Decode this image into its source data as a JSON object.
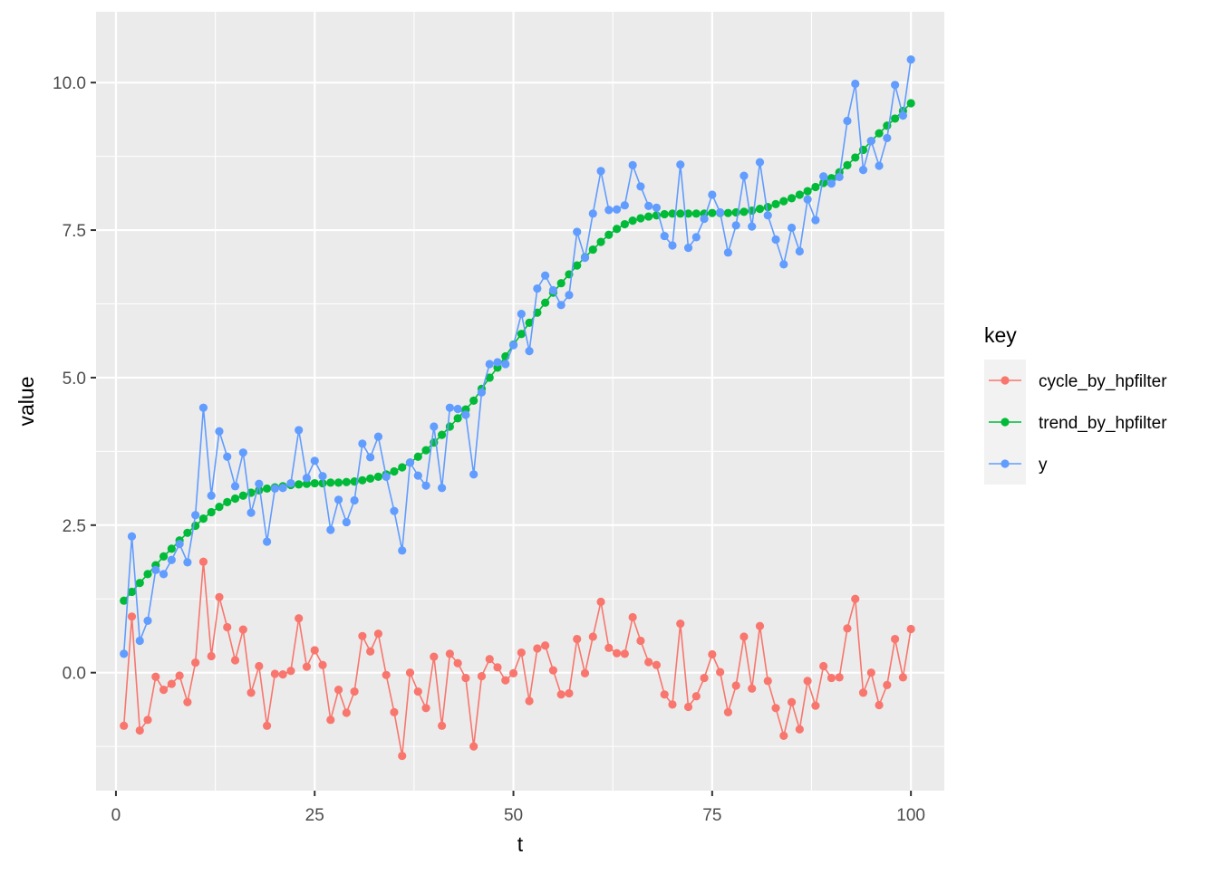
{
  "chart_data": {
    "type": "line",
    "xlabel": "t",
    "ylabel": "value",
    "xlim": [
      -2.5,
      104.2
    ],
    "ylim": [
      -2.0,
      11.2
    ],
    "x_ticks": [
      0,
      25,
      50,
      75,
      100
    ],
    "x_tick_labels": [
      "0",
      "25",
      "50",
      "75",
      "100"
    ],
    "y_ticks": [
      0.0,
      2.5,
      5.0,
      7.5,
      10.0
    ],
    "y_tick_labels": [
      "0.0",
      "2.5",
      "5.0",
      "7.5",
      "10.0"
    ],
    "grid": true,
    "legend": {
      "title": "key",
      "position": "right"
    },
    "x": [
      1,
      2,
      3,
      4,
      5,
      6,
      7,
      8,
      9,
      10,
      11,
      12,
      13,
      14,
      15,
      16,
      17,
      18,
      19,
      20,
      21,
      22,
      23,
      24,
      25,
      26,
      27,
      28,
      29,
      30,
      31,
      32,
      33,
      34,
      35,
      36,
      37,
      38,
      39,
      40,
      41,
      42,
      43,
      44,
      45,
      46,
      47,
      48,
      49,
      50,
      51,
      52,
      53,
      54,
      55,
      56,
      57,
      58,
      59,
      60,
      61,
      62,
      63,
      64,
      65,
      66,
      67,
      68,
      69,
      70,
      71,
      72,
      73,
      74,
      75,
      76,
      77,
      78,
      79,
      80,
      81,
      82,
      83,
      84,
      85,
      86,
      87,
      88,
      89,
      90,
      91,
      92,
      93,
      94,
      95,
      96,
      97,
      98,
      99,
      100
    ],
    "series": [
      {
        "name": "cycle_by_hpfilter",
        "color": "#F8766D",
        "values": [
          -0.9,
          0.95,
          -0.98,
          -0.8,
          -0.07,
          -0.29,
          -0.19,
          -0.05,
          -0.5,
          0.17,
          1.88,
          0.28,
          1.28,
          0.77,
          0.21,
          0.73,
          -0.34,
          0.11,
          -0.9,
          -0.02,
          -0.03,
          0.03,
          0.92,
          0.1,
          0.38,
          0.13,
          -0.8,
          -0.29,
          -0.68,
          -0.32,
          0.62,
          0.36,
          0.66,
          -0.04,
          -0.67,
          -1.41,
          0.0,
          -0.32,
          -0.6,
          0.27,
          -0.9,
          0.32,
          0.16,
          -0.09,
          -1.25,
          -0.06,
          0.23,
          0.09,
          -0.13,
          -0.01,
          0.34,
          -0.48,
          0.41,
          0.46,
          0.04,
          -0.37,
          -0.35,
          0.57,
          -0.01,
          0.61,
          1.2,
          0.42,
          0.33,
          0.32,
          0.94,
          0.54,
          0.18,
          0.13,
          -0.37,
          -0.54,
          0.83,
          -0.58,
          -0.4,
          -0.09,
          0.31,
          0.01,
          -0.67,
          -0.22,
          0.61,
          -0.27,
          0.79,
          -0.14,
          -0.6,
          -1.07,
          -0.5,
          -0.96,
          -0.14,
          -0.56,
          0.11,
          -0.09,
          -0.08,
          0.75,
          1.25,
          -0.34,
          0.0,
          -0.55,
          -0.21,
          0.57,
          -0.08,
          0.74
        ]
      },
      {
        "name": "trend_by_hpfilter",
        "color": "#00BA38",
        "values": [
          1.22,
          1.37,
          1.52,
          1.67,
          1.82,
          1.97,
          2.1,
          2.24,
          2.37,
          2.49,
          2.61,
          2.72,
          2.81,
          2.89,
          2.95,
          3.0,
          3.05,
          3.09,
          3.12,
          3.14,
          3.16,
          3.18,
          3.19,
          3.2,
          3.21,
          3.21,
          3.22,
          3.22,
          3.23,
          3.24,
          3.26,
          3.29,
          3.32,
          3.36,
          3.41,
          3.48,
          3.56,
          3.66,
          3.77,
          3.9,
          4.03,
          4.17,
          4.31,
          4.46,
          4.61,
          4.81,
          5.0,
          5.17,
          5.36,
          5.56,
          5.74,
          5.93,
          6.1,
          6.27,
          6.44,
          6.6,
          6.75,
          6.9,
          7.04,
          7.17,
          7.3,
          7.42,
          7.52,
          7.6,
          7.66,
          7.7,
          7.73,
          7.75,
          7.77,
          7.78,
          7.78,
          7.78,
          7.78,
          7.78,
          7.79,
          7.79,
          7.79,
          7.8,
          7.81,
          7.83,
          7.86,
          7.89,
          7.94,
          7.99,
          8.04,
          8.1,
          8.16,
          8.23,
          8.3,
          8.38,
          8.48,
          8.6,
          8.73,
          8.86,
          9.01,
          9.14,
          9.27,
          9.39,
          9.52,
          9.65
        ]
      },
      {
        "name": "y",
        "color": "#619CFF",
        "values": [
          0.32,
          2.31,
          0.54,
          0.88,
          1.74,
          1.67,
          1.91,
          2.18,
          1.87,
          2.67,
          4.49,
          3.0,
          4.09,
          3.66,
          3.16,
          3.73,
          2.71,
          3.2,
          2.22,
          3.12,
          3.13,
          3.21,
          4.11,
          3.3,
          3.59,
          3.33,
          2.42,
          2.93,
          2.55,
          2.92,
          3.88,
          3.65,
          4.0,
          3.32,
          2.74,
          2.07,
          3.56,
          3.34,
          3.17,
          4.17,
          3.13,
          4.49,
          4.47,
          4.37,
          3.36,
          4.75,
          5.23,
          5.26,
          5.23,
          5.55,
          6.08,
          5.45,
          6.51,
          6.73,
          6.48,
          6.23,
          6.4,
          7.47,
          7.03,
          7.78,
          8.5,
          7.84,
          7.85,
          7.92,
          8.6,
          8.24,
          7.91,
          7.88,
          7.4,
          7.24,
          8.61,
          7.2,
          7.38,
          7.69,
          8.1,
          7.8,
          7.12,
          7.58,
          8.42,
          7.56,
          8.65,
          7.75,
          7.34,
          6.92,
          7.54,
          7.14,
          8.02,
          7.67,
          8.41,
          8.29,
          8.4,
          9.35,
          9.98,
          8.52,
          9.01,
          8.59,
          9.06,
          9.96,
          9.44,
          10.39
        ]
      }
    ]
  }
}
